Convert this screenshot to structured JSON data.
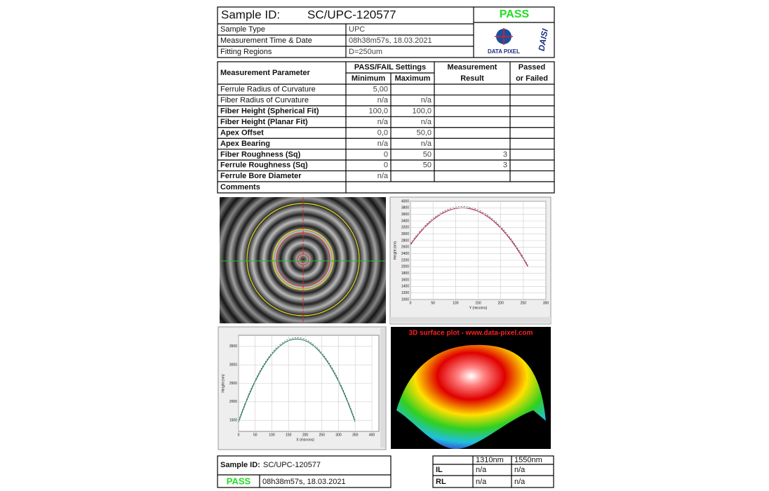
{
  "header": {
    "sample_id_label": "Sample ID:",
    "sample_id": "SC/UPC-120577",
    "status": "PASS",
    "logo_text": "DATA PIXEL",
    "logo_brand": "DAISI",
    "rows": [
      [
        "Sample Type",
        "UPC"
      ],
      [
        "Measurement Time & Date",
        "08h38m57s, 18.03.2021"
      ],
      [
        "Fitting Regions",
        "D=250um"
      ]
    ]
  },
  "table": {
    "headers": {
      "parameter": "Measurement Parameter",
      "settings": "PASS/FAIL Settings",
      "minimum": "Minimum",
      "maximum": "Maximum",
      "result": [
        "Measurement",
        "Result"
      ],
      "passed": [
        "Passed",
        "or Failed"
      ]
    },
    "rows": [
      [
        "Ferrule Radius of Curvature",
        "5,00",
        null,
        null,
        null
      ],
      [
        "Fiber Radius of Curvature",
        "n/a",
        "n/a",
        null,
        null
      ],
      [
        "Fiber Height (Spherical Fit)",
        "100,0",
        "100,0",
        null,
        null
      ],
      [
        "Fiber Height (Planar Fit)",
        "n/a",
        "n/a",
        null,
        null
      ],
      [
        "Apex Offset",
        "0,0",
        "50,0",
        null,
        null
      ],
      [
        "Apex Bearing",
        "n/a",
        "n/a",
        null,
        null
      ],
      [
        "Fiber Roughness (Sq)",
        "0",
        "50",
        "3",
        null
      ],
      [
        "Ferrule Roughness (Sq)",
        "0",
        "50",
        "3",
        null
      ],
      [
        "Ferrule Bore Diameter",
        "n/a",
        null,
        null,
        null
      ]
    ],
    "comments_label": "Comments"
  },
  "plots": {
    "y_profile": {
      "x_label": "Y (microns)",
      "y_label": "Height (nm)",
      "xticks": [
        0,
        50,
        100,
        150,
        200,
        250,
        300
      ],
      "yticks": [
        1000,
        1200,
        1400,
        1600,
        1800,
        2000,
        2200,
        2400,
        2600,
        2800,
        3000,
        3200,
        3400,
        3600,
        3800,
        4000
      ]
    },
    "x_profile": {
      "x_label": "X (microns)",
      "y_label": "Height (nm)",
      "xticks": [
        0,
        50,
        100,
        150,
        200,
        250,
        300,
        350,
        400
      ],
      "yticks": [
        1500,
        2000,
        2500,
        3000,
        3500
      ]
    },
    "surface_title": "3D surface plot - www.data-pixel.com"
  },
  "footer": {
    "sample_id_label": "Sample ID:",
    "sample_id": "SC/UPC-120577",
    "status": "PASS",
    "datetime": "08h38m57s,  18.03.2021",
    "wavelengths": [
      "1310nm",
      "1550nm"
    ],
    "rows": [
      [
        "IL",
        "n/a",
        "n/a"
      ],
      [
        "RL",
        "n/a",
        "n/a"
      ]
    ]
  }
}
